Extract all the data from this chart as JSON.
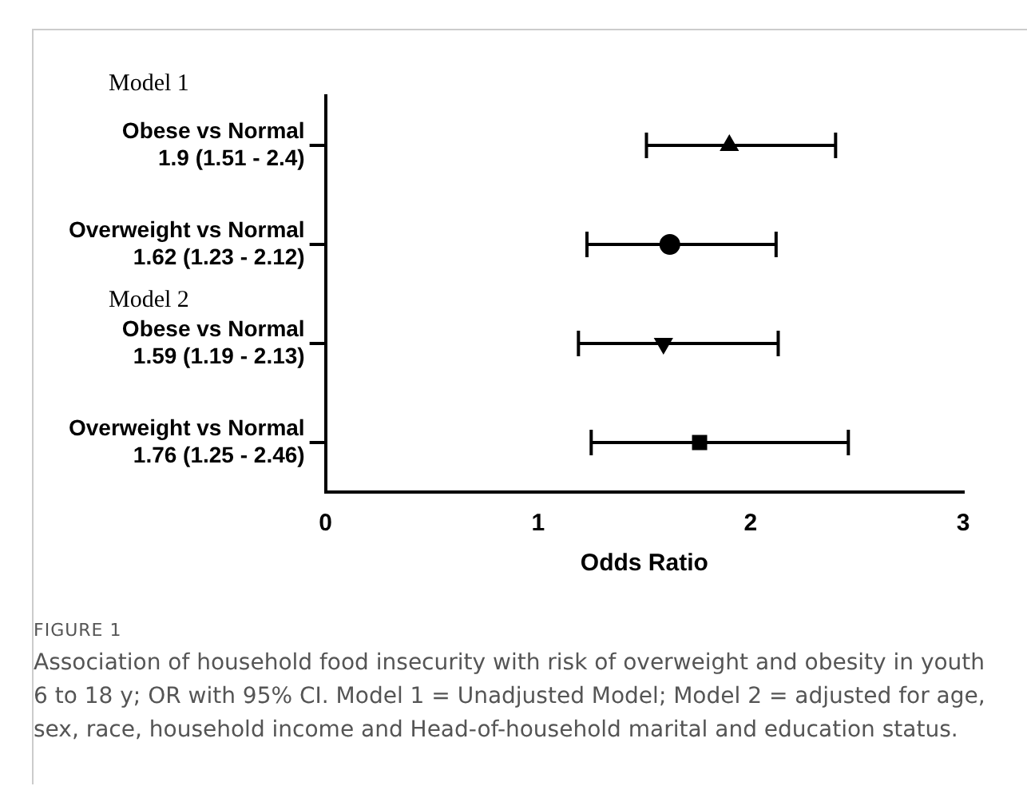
{
  "chart_data": {
    "type": "scatter",
    "orientation": "horizontal",
    "categories": [
      "Obese vs Normal\n1.9 (1.51 - 2.4)",
      "Overweight vs Normal\n1.62 (1.23 - 2.12)",
      "Obese vs Normal\n1.59 (1.19 - 2.13)",
      "Overweight vs Normal\n1.76 (1.25 - 2.46)"
    ],
    "series": [
      {
        "color": "#000000",
        "marker": "triangle",
        "values": [
          1.9,
          null,
          null,
          null
        ],
        "errors": [
          [
            1.51,
            2.4
          ],
          null,
          null,
          null
        ]
      },
      {
        "color": "#000000",
        "marker": "circle",
        "values": [
          null,
          1.62,
          null,
          null
        ],
        "errors": [
          null,
          [
            1.23,
            2.12
          ],
          null,
          null
        ]
      },
      {
        "color": "#000000",
        "marker": "triangle-down",
        "values": [
          null,
          null,
          1.59,
          null
        ],
        "errors": [
          null,
          null,
          [
            1.19,
            2.13
          ],
          null
        ]
      },
      {
        "color": "#000000",
        "marker": "square",
        "values": [
          null,
          null,
          null,
          1.76
        ],
        "errors": [
          null,
          null,
          null,
          [
            1.25,
            2.46
          ]
        ]
      }
    ],
    "xlabel": "Odds Ratio",
    "xlim": [
      0,
      3
    ],
    "xticks": [
      0,
      1,
      2,
      3
    ],
    "grid": false,
    "legend": false,
    "annotations": [
      "Model 1",
      "Model 2",
      "FIGURE 1",
      "Association of household food insecurity with risk of overweight and obesity in youth 6 to 18 y; OR with 95% CI. Model 1 = Unadjusted Model; Model 2 = adjusted for age, sex, race, household income and Head-of-household marital and education status."
    ]
  }
}
